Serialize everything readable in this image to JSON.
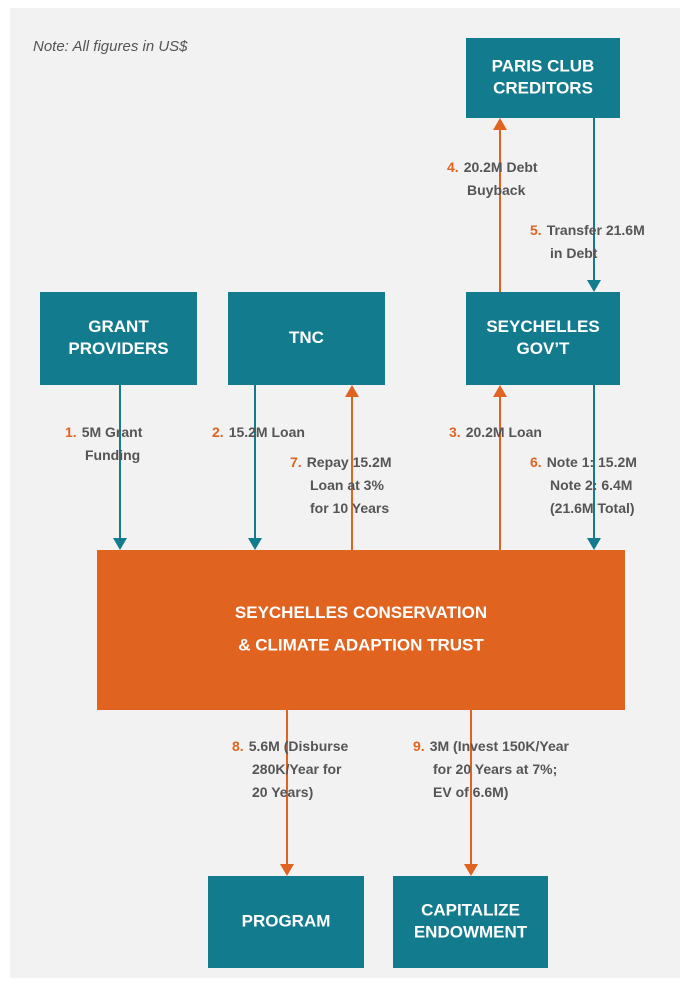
{
  "note": "Note: All figures in US$",
  "nodes": [
    {
      "lines": [
        "PARIS CLUB",
        "CREDITORS"
      ]
    },
    {
      "lines": [
        "GRANT",
        "PROVIDERS"
      ]
    },
    {
      "lines": [
        "TNC"
      ]
    },
    {
      "lines": [
        "SEYCHELLES",
        "GOV’T"
      ]
    },
    {
      "lines": [
        "SEYCHELLES CONSERVATION",
        "& CLIMATE ADAPTION TRUST"
      ]
    },
    {
      "lines": [
        "PROGRAM"
      ]
    },
    {
      "lines": [
        "CAPITALIZE",
        "ENDOWMENT"
      ]
    }
  ],
  "edges": [
    {
      "step": "1.",
      "lines": [
        "5M Grant",
        "Funding"
      ]
    },
    {
      "step": "2.",
      "lines": [
        "15.2M Loan"
      ]
    },
    {
      "step": "3.",
      "lines": [
        "20.2M Loan"
      ]
    },
    {
      "step": "4.",
      "lines": [
        "20.2M Debt",
        "Buyback"
      ]
    },
    {
      "step": "5.",
      "lines": [
        "Transfer 21.6M",
        "in Debt"
      ]
    },
    {
      "step": "6.",
      "lines": [
        "Note 1: 15.2M",
        "Note 2: 6.4M",
        "(21.6M Total)"
      ]
    },
    {
      "step": "7.",
      "lines": [
        "Repay 15.2M",
        "Loan at 3%",
        "for 10 Years"
      ]
    },
    {
      "step": "8.",
      "lines": [
        "5.6M (Disburse",
        "280K/Year for",
        "20 Years)"
      ]
    },
    {
      "step": "9.",
      "lines": [
        "3M (Invest 150K/Year",
        "for 20 Years at 7%;",
        "EV of 6.6M)"
      ]
    }
  ]
}
